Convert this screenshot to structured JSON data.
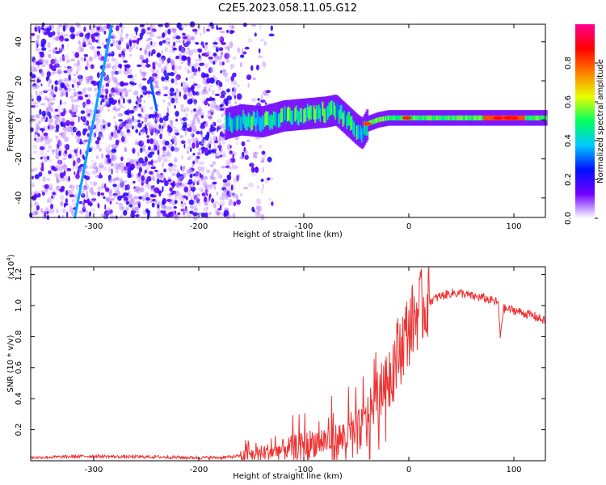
{
  "title": "C2E5.2023.058.11.05.G12",
  "chart_data": [
    {
      "type": "heatmap",
      "title": "C2E5.2023.058.11.05.G12",
      "xlabel": "Height of straight line (km)",
      "ylabel": "Frequency (Hz)",
      "xlim": [
        -360,
        130
      ],
      "ylim": [
        -50,
        49
      ],
      "xticks": [
        -300,
        -200,
        -100,
        0,
        100
      ],
      "yticks": [
        -40,
        -20,
        0,
        20,
        40
      ],
      "colorbar": {
        "label": "Normalized spectral amplitude",
        "range": [
          0.0,
          1.0
        ],
        "ticks": [
          0.0,
          0.2,
          0.4,
          0.6,
          0.8
        ],
        "colors": [
          "#ffffff",
          "#7000ff",
          "#0010ff",
          "#00c8ff",
          "#00ff60",
          "#e8ff00",
          "#ff8000",
          "#ff0000",
          "#ff0090"
        ]
      },
      "features": {
        "noise_region_x": [
          -360,
          -165
        ],
        "doppler_trace_center": [
          [
            -175,
            -2
          ],
          [
            -160,
            0
          ],
          [
            -140,
            -1
          ],
          [
            -120,
            2
          ],
          [
            -100,
            3
          ],
          [
            -80,
            4
          ],
          [
            -70,
            5
          ],
          [
            -60,
            0
          ],
          [
            -50,
            -5
          ],
          [
            -45,
            -7
          ],
          [
            -40,
            -2
          ],
          [
            -30,
            0
          ],
          [
            -20,
            1
          ],
          [
            0,
            1
          ],
          [
            40,
            1
          ],
          [
            80,
            1
          ],
          [
            130,
            1
          ]
        ],
        "streaks": [
          {
            "from": [
              -318,
              -50
            ],
            "to": [
              -283,
              48
            ],
            "level": 0.35
          },
          {
            "from": [
              -246,
              20
            ],
            "to": [
              -240,
              5
            ],
            "level": 0.3
          }
        ]
      }
    },
    {
      "type": "line",
      "xlabel": "Height of straight line (km)",
      "ylabel": "SNR (10 * v/v)",
      "yunit": "(x10",
      "yunit_exp": "4",
      "yunit_close": ")",
      "xlim": [
        -360,
        130
      ],
      "ylim": [
        0,
        1.25
      ],
      "xticks": [
        -300,
        -200,
        -100,
        0,
        100
      ],
      "yticks": [
        0.2,
        0.4,
        0.6,
        0.8,
        1.0,
        1.2
      ],
      "series": [
        {
          "color": "#ee3333",
          "x": [
            -360,
            -330,
            -300,
            -270,
            -240,
            -210,
            -180,
            -160,
            -150,
            -140,
            -130,
            -120,
            -110,
            -100,
            -90,
            -80,
            -70,
            -60,
            -50,
            -45,
            -40,
            -35,
            -30,
            -25,
            -20,
            -15,
            -10,
            -5,
            0,
            5,
            10,
            15,
            20,
            30,
            40,
            50,
            60,
            70,
            80,
            85,
            87,
            90,
            100,
            110,
            120,
            130
          ],
          "values": [
            0.02,
            0.025,
            0.03,
            0.025,
            0.025,
            0.02,
            0.02,
            0.03,
            0.04,
            0.05,
            0.06,
            0.07,
            0.09,
            0.1,
            0.12,
            0.13,
            0.13,
            0.15,
            0.18,
            0.22,
            0.28,
            0.35,
            0.4,
            0.45,
            0.55,
            0.62,
            0.7,
            0.78,
            0.85,
            0.92,
            0.98,
            1.0,
            1.03,
            1.06,
            1.08,
            1.08,
            1.06,
            1.05,
            1.03,
            1.02,
            0.8,
            0.98,
            0.97,
            0.95,
            0.93,
            0.9
          ]
        }
      ]
    }
  ]
}
